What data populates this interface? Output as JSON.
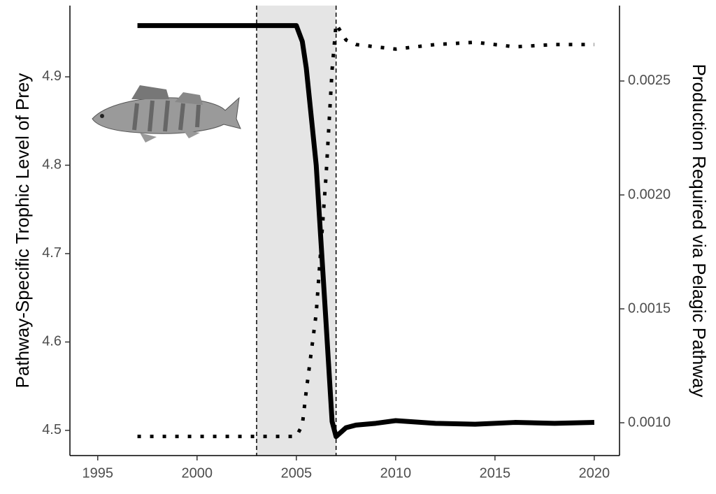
{
  "chart_data": {
    "type": "line",
    "ylabel": "Pathway-Specific Trophic Level of Prey",
    "y2label": "Production Required via Pelagic Pathway",
    "x": [
      1997,
      1999,
      2001,
      2003,
      2005,
      2005.3,
      2005.5,
      2006,
      2006.5,
      2006.8,
      2007,
      2007.5,
      2008,
      2009,
      2010,
      2012,
      2014,
      2016,
      2018,
      2020
    ],
    "series": [
      {
        "color": "#000000",
        "line_style": "solid",
        "axis": "y",
        "values": [
          4.958,
          4.958,
          4.958,
          4.958,
          4.958,
          4.94,
          4.91,
          4.8,
          4.62,
          4.51,
          4.493,
          4.503,
          4.506,
          4.508,
          4.511,
          4.508,
          4.507,
          4.509,
          4.508,
          4.509
        ]
      },
      {
        "color": "#000000",
        "line_style": "dotted",
        "axis": "y2",
        "values": [
          0.00094,
          0.00094,
          0.00094,
          0.00094,
          0.00094,
          0.00099,
          0.00114,
          0.00148,
          0.00209,
          0.00255,
          0.00275,
          0.00268,
          0.00266,
          0.00265,
          0.00264,
          0.00266,
          0.00267,
          0.00265,
          0.00266,
          0.00266
        ]
      }
    ],
    "shaded_region": [
      2003,
      2007
    ],
    "xlim": [
      1993.6,
      2021.27
    ],
    "xticks": [
      1995,
      2000,
      2005,
      2010,
      2015,
      2020
    ],
    "ylim": [
      4.4715,
      4.9806
    ],
    "yticks": [
      4.5,
      4.6,
      4.7,
      4.8,
      4.9
    ],
    "y2lim": [
      0.000856,
      0.002831
    ],
    "y2ticks": [
      {
        "value": 0.001,
        "label": "0.0010"
      },
      {
        "value": 0.0015,
        "label": "0.0015"
      },
      {
        "value": 0.002,
        "label": "0.0020"
      },
      {
        "value": 0.0025,
        "label": "0.0025"
      }
    ]
  }
}
